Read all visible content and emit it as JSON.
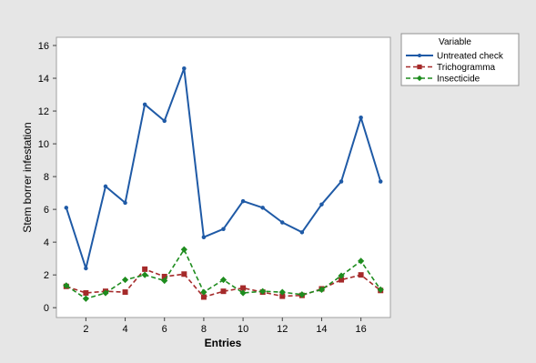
{
  "chart_data": {
    "type": "line",
    "title": "",
    "xlabel": "Entries",
    "ylabel": "Stem borrer infestation",
    "xlim": [
      0.5,
      17.5
    ],
    "ylim": [
      -0.6,
      16.5
    ],
    "xticks": [
      2,
      4,
      6,
      8,
      10,
      12,
      14,
      16
    ],
    "yticks": [
      0,
      2,
      4,
      6,
      8,
      10,
      12,
      14,
      16
    ],
    "grid": false,
    "legend_position": "right",
    "legend_title": "Variable",
    "x": [
      1,
      2,
      3,
      4,
      5,
      6,
      7,
      8,
      9,
      10,
      11,
      12,
      13,
      14,
      15,
      16,
      17
    ],
    "series": [
      {
        "name": "Untreated check",
        "color": "#1f5aa6",
        "line_style": "solid",
        "marker": "circle",
        "values": [
          6.1,
          2.4,
          7.4,
          6.4,
          12.4,
          11.4,
          14.6,
          4.3,
          4.8,
          6.5,
          6.1,
          5.2,
          4.6,
          6.3,
          7.7,
          11.6,
          7.7
        ]
      },
      {
        "name": "Trichogramma",
        "color": "#a52a2a",
        "line_style": "dashed",
        "marker": "square",
        "values": [
          1.3,
          0.9,
          1.0,
          0.95,
          2.35,
          1.9,
          2.05,
          0.65,
          1.0,
          1.2,
          0.95,
          0.7,
          0.75,
          1.15,
          1.7,
          2.0,
          1.05
        ]
      },
      {
        "name": "Insecticide",
        "color": "#1e8c1e",
        "line_style": "dashed",
        "marker": "diamond",
        "values": [
          1.35,
          0.55,
          0.9,
          1.7,
          2.0,
          1.65,
          3.55,
          0.95,
          1.7,
          0.9,
          1.0,
          0.95,
          0.8,
          1.1,
          1.95,
          2.85,
          1.1
        ]
      }
    ]
  }
}
